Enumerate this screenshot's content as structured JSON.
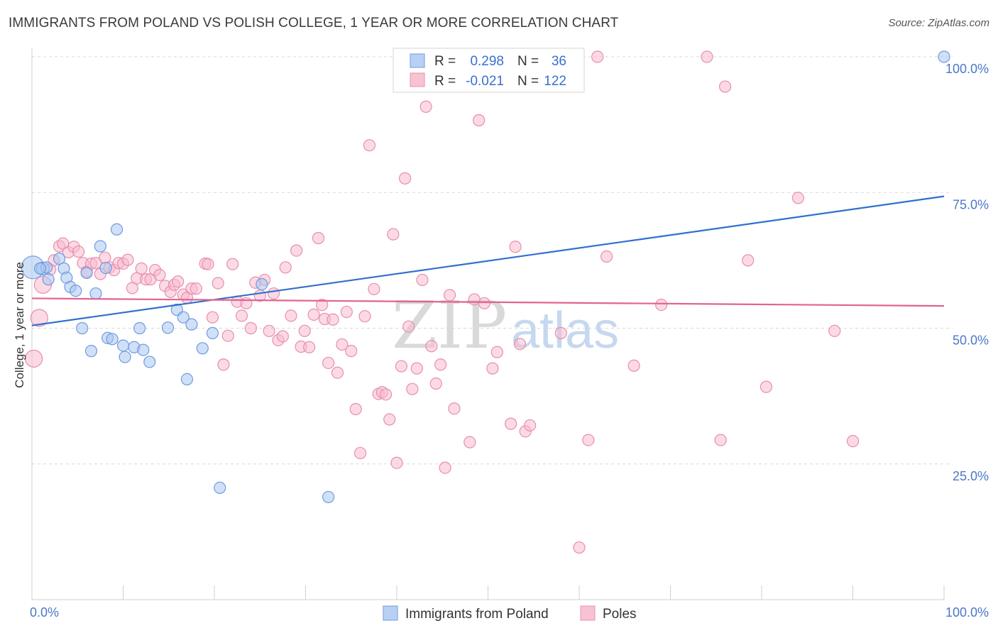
{
  "title": "IMMIGRANTS FROM POLAND VS POLISH COLLEGE, 1 YEAR OR MORE CORRELATION CHART",
  "source": "Source: ZipAtlas.com",
  "watermark": {
    "zip": "ZIP",
    "atlas": "atlas"
  },
  "legend": {
    "r_label": "R =",
    "n_label": "N =",
    "rows": [
      {
        "r": "0.298",
        "n": "36",
        "fill": "#b8d0f4",
        "stroke": "#6f9be0"
      },
      {
        "r": "-0.021",
        "n": "122",
        "fill": "#f7c3d3",
        "stroke": "#e890ad"
      }
    ]
  },
  "colors": {
    "series_a_fill": "#a9c6f0",
    "series_a_stroke": "#6e9be0",
    "series_a_line": "#2f6fce",
    "series_b_fill": "#f7bcd0",
    "series_b_stroke": "#e88eac",
    "series_b_line": "#e2638f",
    "grid": "#d8d8d8",
    "axis_text": "#4a78c8"
  },
  "chart_data": {
    "type": "scatter",
    "title": "IMMIGRANTS FROM POLAND VS POLISH COLLEGE, 1 YEAR OR MORE CORRELATION CHART",
    "xlabel": "",
    "ylabel": "College, 1 year or more",
    "xlim": [
      0,
      100
    ],
    "ylim": [
      0,
      100
    ],
    "x_tick_labels": [
      {
        "value": 0,
        "label": "0.0%"
      },
      {
        "value": 100,
        "label": "100.0%"
      }
    ],
    "y_tick_labels": [
      {
        "value": 25,
        "label": "25.0%"
      },
      {
        "value": 50,
        "label": "50.0%"
      },
      {
        "value": 75,
        "label": "75.0%"
      },
      {
        "value": 100,
        "label": "100.0%"
      }
    ],
    "grid": true,
    "legend_position": "top-center",
    "series": [
      {
        "name": "Immigrants from Poland",
        "trend": {
          "x": [
            0,
            100
          ],
          "y": [
            50.5,
            74.3
          ]
        },
        "points": [
          [
            0.1,
            61.2,
            16
          ],
          [
            1.2,
            61,
            9
          ],
          [
            1.8,
            59,
            8
          ],
          [
            1.6,
            61.2,
            8
          ],
          [
            3.0,
            62.8,
            8
          ],
          [
            3.5,
            61,
            8
          ],
          [
            3.8,
            59.3,
            8
          ],
          [
            4.2,
            57.6,
            8
          ],
          [
            4.8,
            56.9,
            8
          ],
          [
            5.5,
            50,
            8
          ],
          [
            6.0,
            60.2,
            8
          ],
          [
            6.5,
            45.8,
            8
          ],
          [
            7.0,
            56.4,
            8
          ],
          [
            7.5,
            65.1,
            8
          ],
          [
            8.1,
            61.1,
            8
          ],
          [
            8.3,
            48.2,
            8
          ],
          [
            8.8,
            48,
            8
          ],
          [
            9.3,
            68.2,
            8
          ],
          [
            10.0,
            46.8,
            8
          ],
          [
            10.2,
            44.7,
            8
          ],
          [
            11.2,
            46.5,
            8
          ],
          [
            11.8,
            50,
            8
          ],
          [
            12.2,
            46,
            8
          ],
          [
            12.9,
            43.8,
            8
          ],
          [
            14.9,
            50.1,
            8
          ],
          [
            15.9,
            53.4,
            8
          ],
          [
            16.6,
            52,
            8
          ],
          [
            17.0,
            40.6,
            8
          ],
          [
            17.5,
            50.7,
            8
          ],
          [
            18.7,
            46.3,
            8
          ],
          [
            19.8,
            49.1,
            8
          ],
          [
            20.6,
            20.6,
            8
          ],
          [
            25.2,
            58.1,
            8
          ],
          [
            32.5,
            18.9,
            8
          ],
          [
            100,
            100,
            8
          ],
          [
            0.9,
            61,
            8
          ]
        ]
      },
      {
        "name": "Poles",
        "trend": {
          "x": [
            0,
            100
          ],
          "y": [
            55.5,
            54.1
          ]
        },
        "points": [
          [
            0.2,
            44.4,
            12
          ],
          [
            0.8,
            51.9,
            12
          ],
          [
            1.2,
            58,
            12
          ],
          [
            2.0,
            60.8,
            8
          ],
          [
            2.4,
            62.5,
            8
          ],
          [
            3.0,
            65.1,
            8
          ],
          [
            3.4,
            65.6,
            8
          ],
          [
            4.0,
            64,
            8
          ],
          [
            4.6,
            65,
            8
          ],
          [
            5.1,
            64.1,
            8
          ],
          [
            5.6,
            62,
            8
          ],
          [
            6.0,
            60.4,
            8
          ],
          [
            6.5,
            61.9,
            8
          ],
          [
            7.0,
            62,
            8
          ],
          [
            7.5,
            60,
            8
          ],
          [
            8.0,
            63,
            8
          ],
          [
            8.5,
            61.2,
            8
          ],
          [
            9.0,
            60.7,
            8
          ],
          [
            9.5,
            62,
            8
          ],
          [
            10.0,
            61.9,
            8
          ],
          [
            10.5,
            62.6,
            8
          ],
          [
            11.0,
            57.4,
            8
          ],
          [
            11.5,
            59.2,
            8
          ],
          [
            12.0,
            61,
            8
          ],
          [
            12.5,
            59,
            8
          ],
          [
            13.0,
            59,
            8
          ],
          [
            13.5,
            60.7,
            8
          ],
          [
            14.0,
            59.8,
            8
          ],
          [
            14.6,
            57.8,
            8
          ],
          [
            15.2,
            56.7,
            8
          ],
          [
            15.6,
            58,
            8
          ],
          [
            16.0,
            58.6,
            8
          ],
          [
            16.6,
            56.2,
            8
          ],
          [
            17.0,
            55.6,
            8
          ],
          [
            17.5,
            57.3,
            8
          ],
          [
            18.0,
            57.3,
            8
          ],
          [
            19.0,
            61.9,
            8
          ],
          [
            19.3,
            61.8,
            8
          ],
          [
            19.8,
            52,
            8
          ],
          [
            20.4,
            58.3,
            8
          ],
          [
            21.0,
            43.3,
            8
          ],
          [
            21.5,
            48.6,
            8
          ],
          [
            22.0,
            61.8,
            8
          ],
          [
            22.5,
            54.9,
            8
          ],
          [
            23.0,
            52.3,
            8
          ],
          [
            23.5,
            54.6,
            8
          ],
          [
            24.0,
            50,
            8
          ],
          [
            24.5,
            58.4,
            8
          ],
          [
            25.0,
            56,
            8
          ],
          [
            25.5,
            58.9,
            8
          ],
          [
            26.0,
            49.5,
            8
          ],
          [
            26.5,
            56.4,
            8
          ],
          [
            27.0,
            47.8,
            8
          ],
          [
            27.5,
            48.5,
            8
          ],
          [
            27.8,
            61.2,
            8
          ],
          [
            28.4,
            52.3,
            8
          ],
          [
            29.0,
            64.3,
            8
          ],
          [
            29.5,
            46.6,
            8
          ],
          [
            29.9,
            49.5,
            8
          ],
          [
            30.4,
            46.5,
            8
          ],
          [
            30.9,
            52.5,
            8
          ],
          [
            31.4,
            66.6,
            8
          ],
          [
            31.8,
            54.3,
            8
          ],
          [
            32.1,
            51.7,
            8
          ],
          [
            32.5,
            43.6,
            8
          ],
          [
            33.0,
            51.6,
            8
          ],
          [
            33.5,
            41.8,
            8
          ],
          [
            34.0,
            47,
            8
          ],
          [
            34.5,
            53,
            8
          ],
          [
            35.0,
            45.8,
            8
          ],
          [
            35.5,
            35.1,
            8
          ],
          [
            36.0,
            27,
            8
          ],
          [
            36.5,
            52.2,
            8
          ],
          [
            37.0,
            83.7,
            8
          ],
          [
            37.5,
            57.2,
            8
          ],
          [
            38.0,
            37.9,
            8
          ],
          [
            38.4,
            38.2,
            8
          ],
          [
            38.8,
            37.8,
            8
          ],
          [
            39.2,
            33.2,
            8
          ],
          [
            39.6,
            67.3,
            8
          ],
          [
            40.0,
            25.2,
            8
          ],
          [
            40.5,
            43,
            8
          ],
          [
            40.9,
            77.6,
            8
          ],
          [
            41.3,
            50.3,
            8
          ],
          [
            41.7,
            38.8,
            8
          ],
          [
            42.2,
            42.6,
            8
          ],
          [
            42.8,
            58.9,
            8
          ],
          [
            43.2,
            90.8,
            8
          ],
          [
            43.8,
            46.7,
            8
          ],
          [
            44.3,
            39.8,
            8
          ],
          [
            44.8,
            43.3,
            8
          ],
          [
            45.3,
            24.3,
            8
          ],
          [
            45.8,
            56.1,
            8
          ],
          [
            46.3,
            35.2,
            8
          ],
          [
            47.3,
            100,
            8
          ],
          [
            48.0,
            29,
            8
          ],
          [
            48.5,
            55.3,
            8
          ],
          [
            49.0,
            88.3,
            8
          ],
          [
            49.6,
            54.6,
            8
          ],
          [
            50.5,
            42.6,
            8
          ],
          [
            51.0,
            45.6,
            8
          ],
          [
            52.5,
            32.4,
            8
          ],
          [
            53.0,
            65,
            8
          ],
          [
            53.5,
            47.1,
            8
          ],
          [
            54.1,
            31,
            8
          ],
          [
            54.6,
            32.1,
            8
          ],
          [
            56.5,
            100,
            8
          ],
          [
            58.0,
            49.1,
            8
          ],
          [
            60.0,
            9.6,
            8
          ],
          [
            61.0,
            29.4,
            8
          ],
          [
            62.0,
            100,
            8
          ],
          [
            63.0,
            63.2,
            8
          ],
          [
            66.0,
            43.1,
            8
          ],
          [
            69.0,
            54.3,
            8
          ],
          [
            74.0,
            100,
            8
          ],
          [
            76.0,
            94.5,
            8
          ],
          [
            75.5,
            29.4,
            8
          ],
          [
            78.5,
            62.5,
            8
          ],
          [
            80.5,
            39.2,
            8
          ],
          [
            84.0,
            74,
            8
          ],
          [
            88.0,
            49.5,
            8
          ],
          [
            90.0,
            29.2,
            8
          ]
        ]
      }
    ]
  }
}
